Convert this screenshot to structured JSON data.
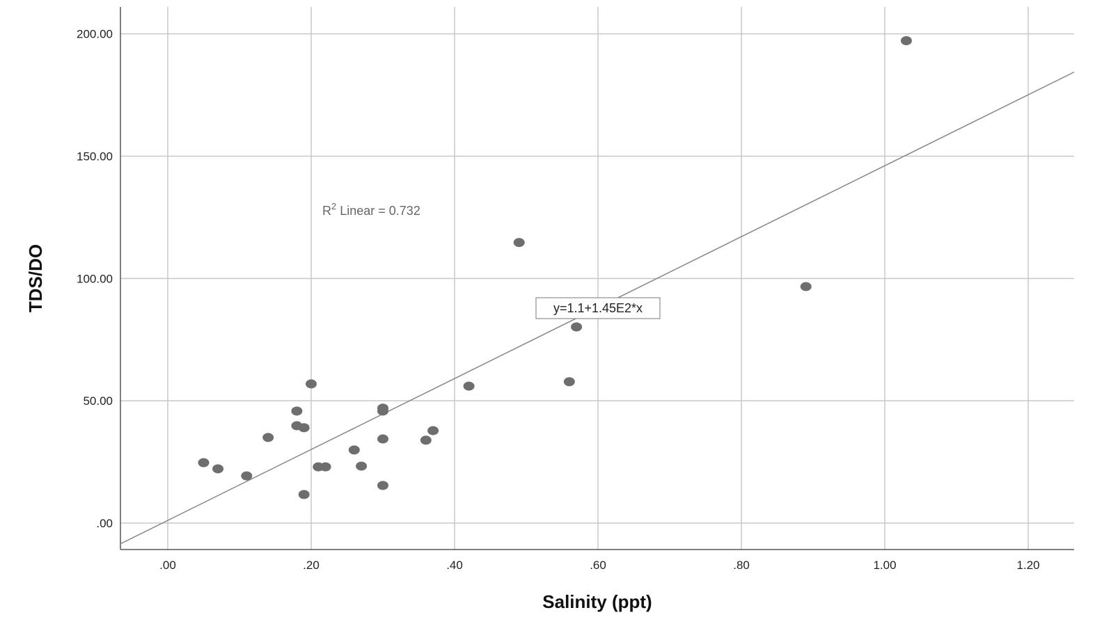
{
  "chart_data": {
    "type": "scatter",
    "title": "",
    "xlabel": "Salinity (ppt)",
    "ylabel": "TDS/DO",
    "xlim": [
      -0.066,
      1.264
    ],
    "ylim": [
      -10.8,
      211
    ],
    "grid": true,
    "x_ticks": [
      0,
      0.2,
      0.4,
      0.6,
      0.8,
      1.0,
      1.2
    ],
    "x_tick_labels": [
      ".00",
      ".20",
      ".40",
      ".60",
      ".80",
      "1.00",
      "1.20"
    ],
    "y_ticks": [
      0,
      50,
      100,
      150,
      200
    ],
    "y_tick_labels": [
      ".00",
      "50.00",
      "100.00",
      "150.00",
      "200.00"
    ],
    "points": [
      [
        0.05,
        24.7
      ],
      [
        0.07,
        22.2
      ],
      [
        0.11,
        19.3
      ],
      [
        0.14,
        35.0
      ],
      [
        0.18,
        45.8
      ],
      [
        0.18,
        39.8
      ],
      [
        0.19,
        39.0
      ],
      [
        0.19,
        11.7
      ],
      [
        0.2,
        56.9
      ],
      [
        0.21,
        23.0
      ],
      [
        0.22,
        23.0
      ],
      [
        0.26,
        29.9
      ],
      [
        0.27,
        23.3
      ],
      [
        0.3,
        47.0
      ],
      [
        0.3,
        45.8
      ],
      [
        0.3,
        34.4
      ],
      [
        0.3,
        15.4
      ],
      [
        0.36,
        33.9
      ],
      [
        0.37,
        37.8
      ],
      [
        0.42,
        56.0
      ],
      [
        0.49,
        114.7
      ],
      [
        0.56,
        57.8
      ],
      [
        0.57,
        80.2
      ],
      [
        0.89,
        96.7
      ],
      [
        1.03,
        197.2
      ]
    ],
    "fit": {
      "intercept": 1.1,
      "slope": 145,
      "equation_label": "y=1.1+1.45E2*x",
      "r2_prefix": "R",
      "r2_sup": "2",
      "r2_text": " Linear = 0.732"
    },
    "colors": {
      "point": "#6e6e6e",
      "grid": "#c8c8c8",
      "fit": "#888888",
      "axis": "#555555"
    }
  }
}
